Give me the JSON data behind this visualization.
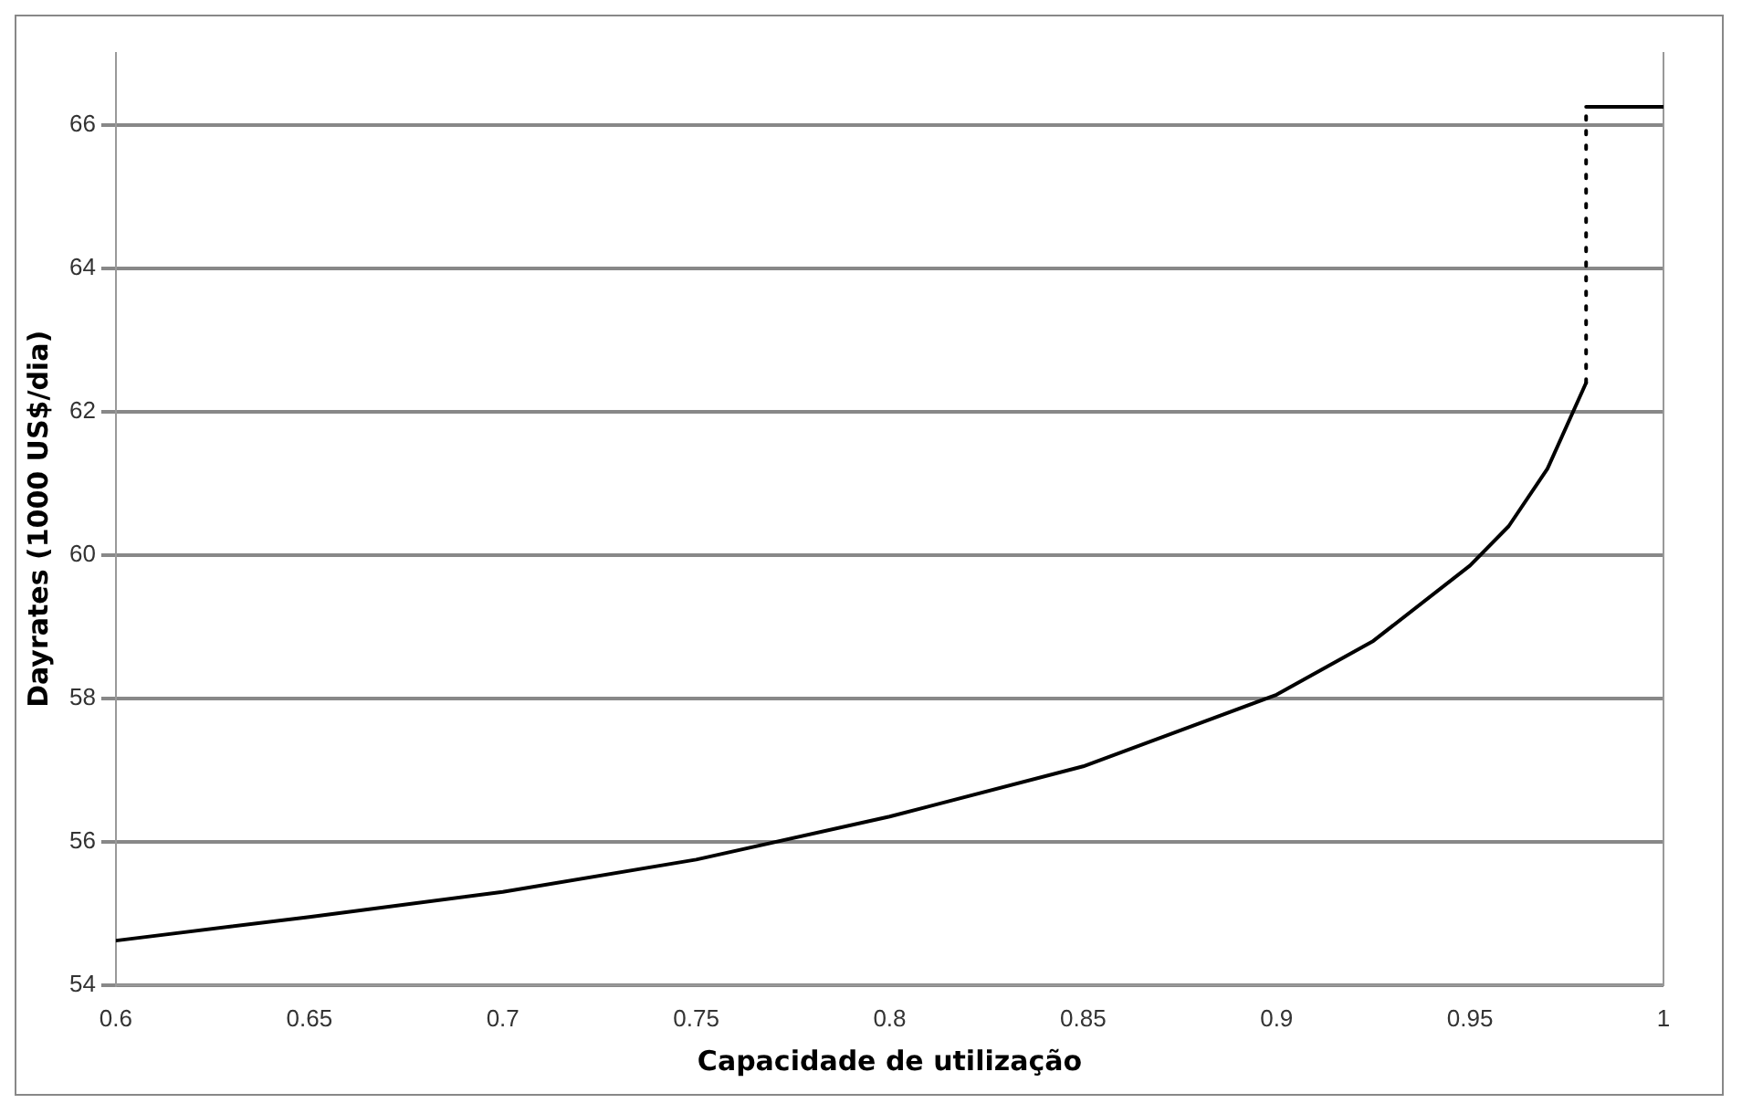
{
  "chart_data": {
    "type": "line",
    "xlabel": "Capacidade de utilização",
    "ylabel": "Dayrates (1000 US$/dia)",
    "xlim": [
      0.6,
      1
    ],
    "xticks": [
      0.6,
      0.65,
      0.7,
      0.75,
      0.8,
      0.85,
      0.9,
      0.95,
      1
    ],
    "ylim": [
      54,
      67
    ],
    "yticks": [
      54,
      56,
      58,
      60,
      62,
      64,
      66
    ],
    "grid": "y",
    "legend": false,
    "marker": "none",
    "series": [
      {
        "color": "#000000",
        "line_style": "solid",
        "x": [
          0.6,
          0.65,
          0.7,
          0.75,
          0.8,
          0.85,
          0.9,
          0.925,
          0.95,
          0.96,
          0.97,
          0.98
        ],
        "values": [
          54.62,
          54.95,
          55.3,
          55.75,
          56.35,
          57.05,
          58.05,
          58.8,
          59.85,
          60.4,
          61.2,
          62.4
        ]
      },
      {
        "color": "#000000",
        "line_style": "dotted",
        "x": [
          0.98,
          0.98
        ],
        "values": [
          62.4,
          66.25
        ]
      },
      {
        "color": "#000000",
        "line_style": "solid",
        "x": [
          0.98,
          1
        ],
        "values": [
          66.25,
          66.25
        ]
      }
    ]
  }
}
